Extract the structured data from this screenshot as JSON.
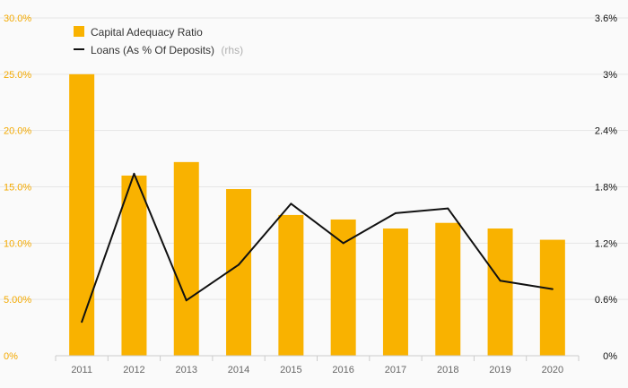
{
  "chart_data": {
    "type": "bar",
    "categories": [
      "2011",
      "2012",
      "2013",
      "2014",
      "2015",
      "2016",
      "2017",
      "2018",
      "2019",
      "2020"
    ],
    "series": [
      {
        "name": "Capital Adequacy Ratio",
        "type": "bar",
        "axis": "left",
        "color": "#f9b200",
        "values": [
          25.0,
          16.0,
          17.2,
          14.8,
          12.5,
          12.1,
          11.3,
          11.8,
          11.3,
          10.3
        ]
      },
      {
        "name": "Loans (As % Of Deposits)",
        "name_suffix": "(rhs)",
        "type": "line",
        "axis": "right",
        "color": "#111111",
        "values": [
          0.36,
          1.94,
          0.59,
          0.97,
          1.62,
          1.2,
          1.52,
          1.57,
          0.8,
          0.71
        ]
      }
    ],
    "y_left": {
      "ylim": [
        0,
        30
      ],
      "tick_labels": [
        "0%",
        "5.00%",
        "10.0%",
        "15.0%",
        "20.0%",
        "25.0%",
        "30.0%"
      ]
    },
    "y_right": {
      "ylim": [
        0,
        3.6
      ],
      "tick_labels": [
        "0%",
        "0.6%",
        "1.2%",
        "1.8%",
        "2.4%",
        "3%",
        "3.6%"
      ]
    },
    "grid": true,
    "legend_position": "top-left"
  }
}
